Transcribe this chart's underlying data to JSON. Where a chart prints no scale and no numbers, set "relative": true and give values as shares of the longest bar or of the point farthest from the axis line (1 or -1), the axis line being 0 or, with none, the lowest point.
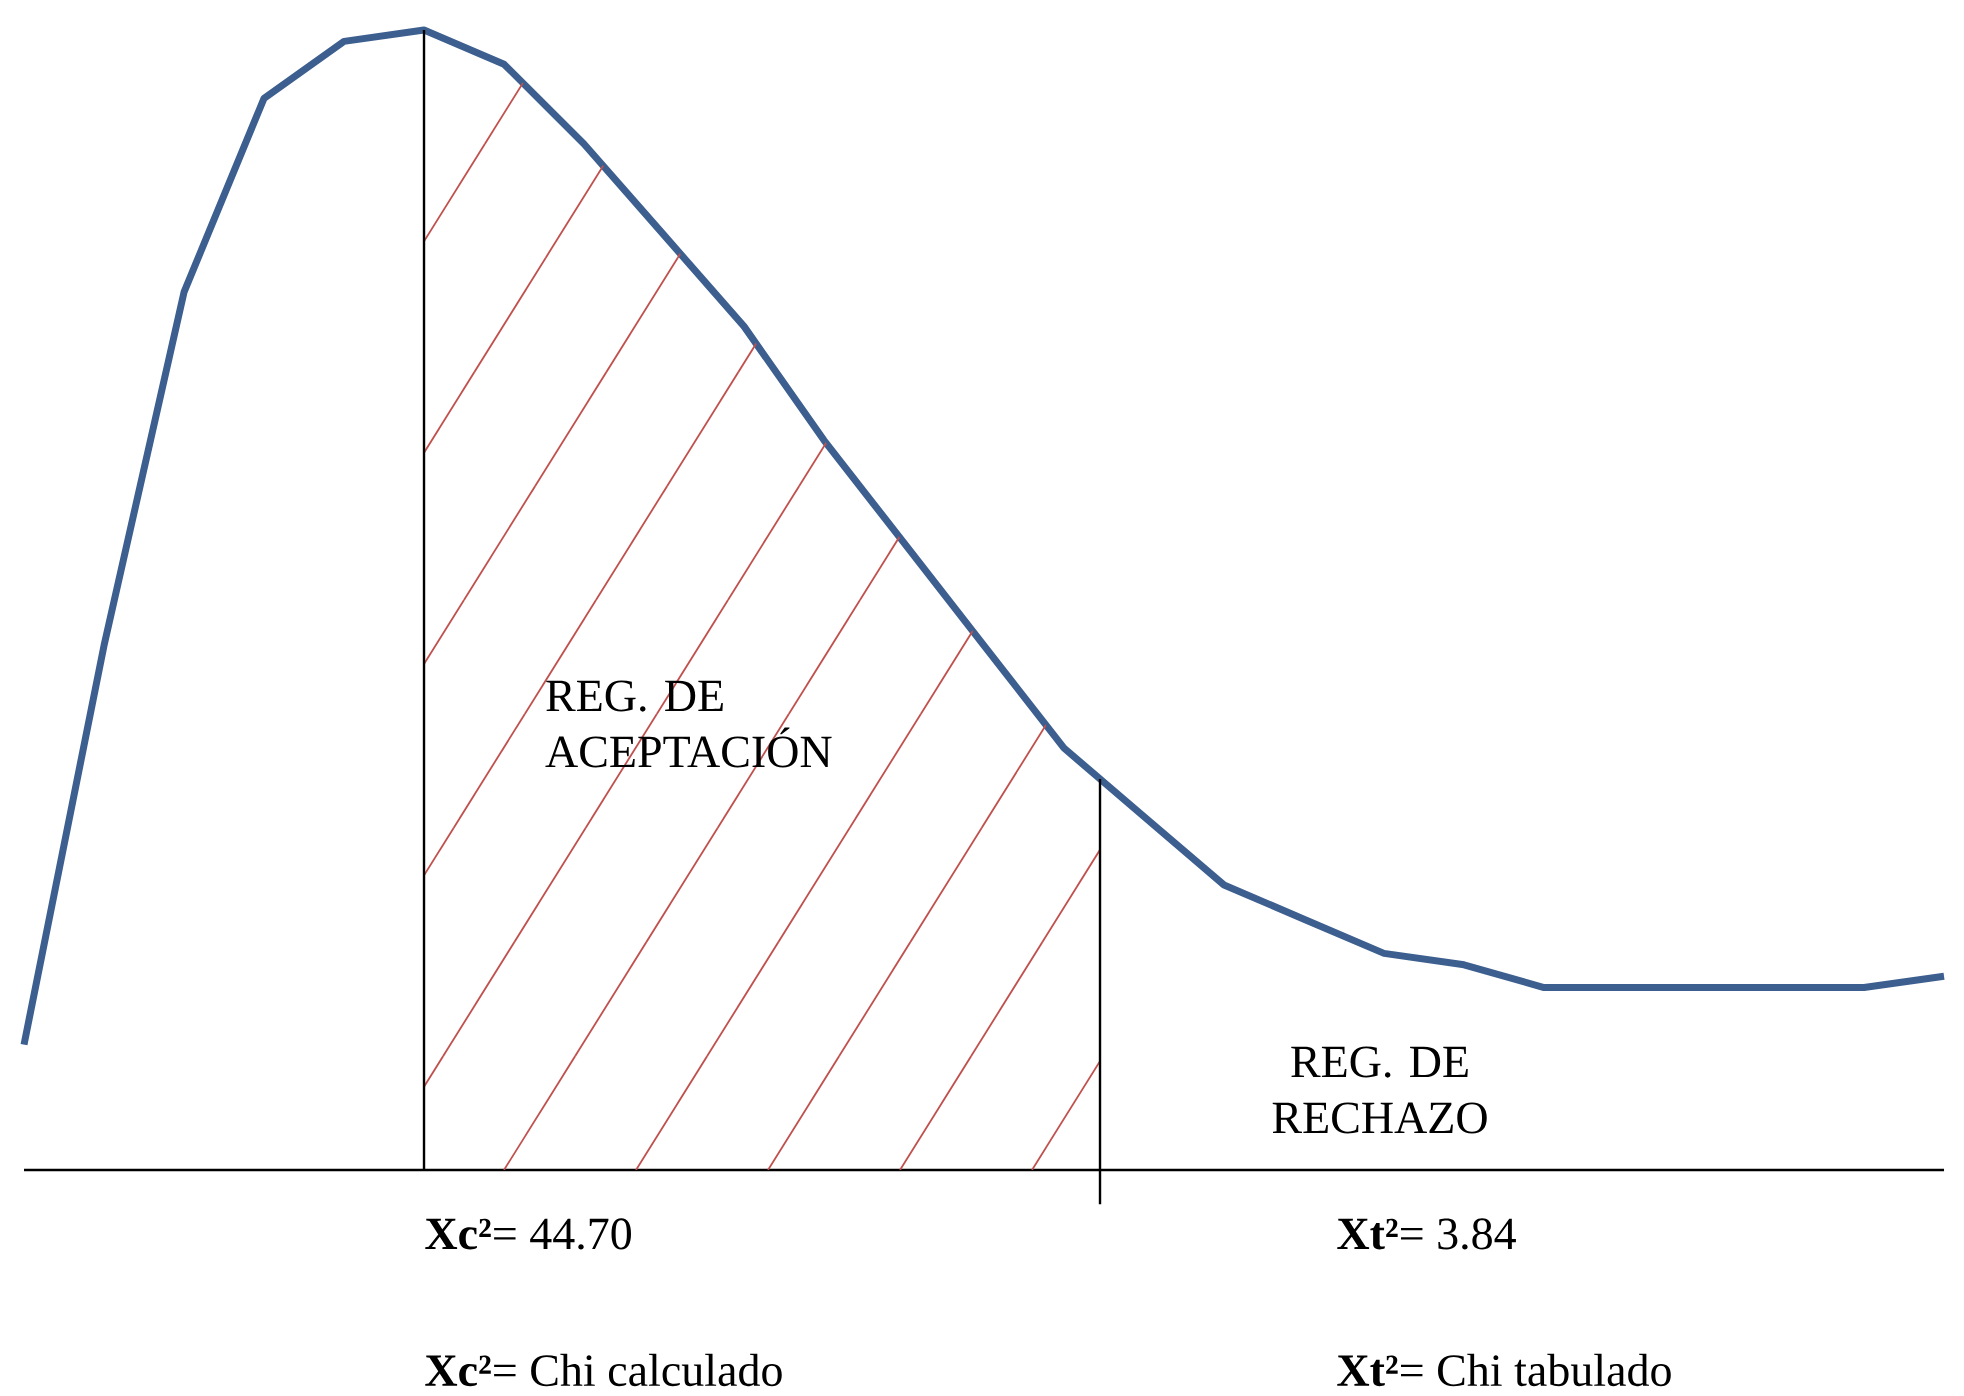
{
  "chart_data": {
    "type": "line",
    "relative": true,
    "categories": [
      null,
      null,
      null,
      null,
      null,
      null,
      null,
      null,
      null,
      null,
      null,
      null,
      null,
      null,
      null,
      null,
      null,
      null,
      null,
      null,
      null,
      null,
      null,
      null,
      null
    ],
    "series": [
      {
        "color": "#3d5f8f",
        "values": [
          0.11,
          0.46,
          0.77,
          0.94,
          0.99,
          1.0,
          0.97,
          0.9,
          0.82,
          0.74,
          0.64,
          0.55,
          0.46,
          0.37,
          0.31,
          0.25,
          0.22,
          0.19,
          0.18,
          0.16,
          0.16,
          0.16,
          0.16,
          0.16,
          0.17
        ]
      }
    ],
    "annotations": [
      "REG. DE ACEPTACIÓN",
      "REG. DE RECHAZO",
      "**Xc²**= 44.70",
      "**Xt²**= 3.84",
      "**Xc²**= Chi calculado",
      "**Xt²**= Chi tabulado"
    ]
  }
}
